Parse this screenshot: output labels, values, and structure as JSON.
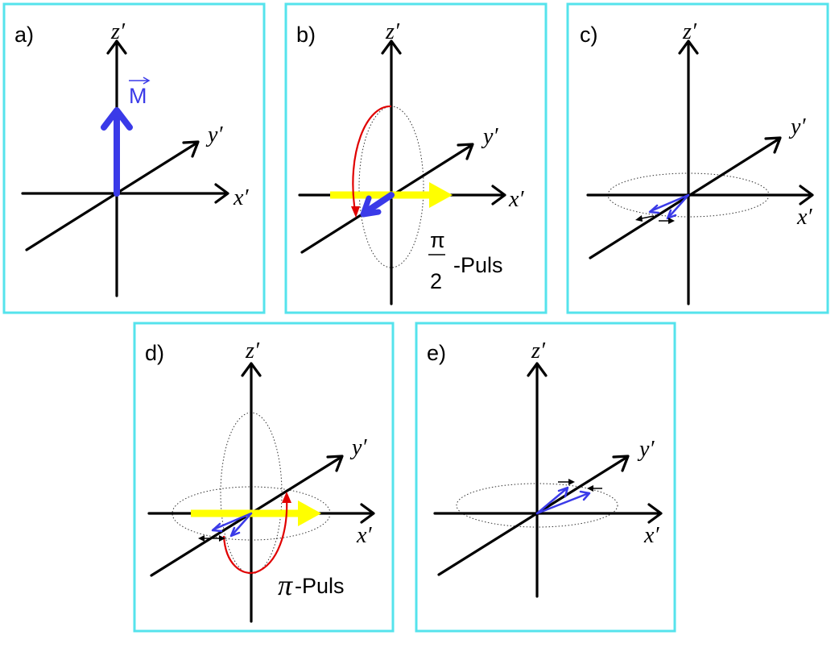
{
  "panels": [
    {
      "id": "a",
      "label": "a)",
      "axes": {
        "z": "z′",
        "y": "y′",
        "x": "x′"
      },
      "magnetization_label": "M",
      "magnetization_color": "#3a3ae8"
    },
    {
      "id": "b",
      "label": "b)",
      "axes": {
        "z": "z′",
        "y": "y′",
        "x": "x′"
      },
      "pulse": {
        "numerator": "π",
        "denominator": "2",
        "text": "-Puls"
      }
    },
    {
      "id": "c",
      "label": "c)",
      "axes": {
        "z": "z′",
        "y": "y′",
        "x": "x′"
      }
    },
    {
      "id": "d",
      "label": "d)",
      "axes": {
        "z": "z′",
        "y": "y′",
        "x": "x′"
      },
      "pulse": {
        "symbol": "π",
        "text": "-Puls"
      }
    },
    {
      "id": "e",
      "label": "e)",
      "axes": {
        "z": "z′",
        "y": "y′",
        "x": "x′"
      }
    }
  ],
  "colors": {
    "frame": "#55e3ec",
    "magnetization": "#3a3ae8",
    "rf_field": "#ffff00",
    "rotation": "#e00000",
    "axes": "#000000"
  }
}
